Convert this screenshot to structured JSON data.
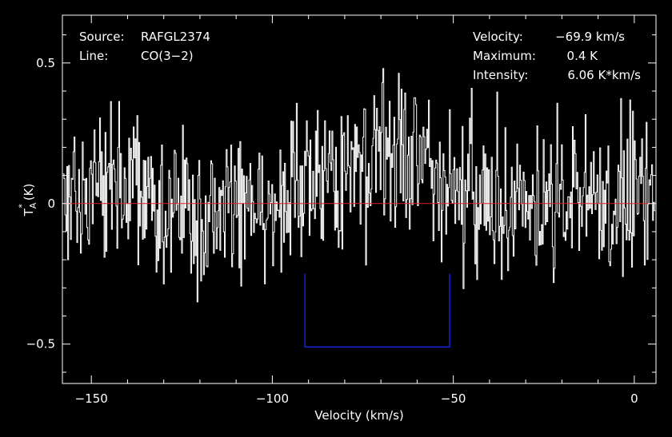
{
  "chart_data": {
    "type": "line",
    "xlabel": "Velocity (km/s)",
    "ylabel_main": "T",
    "ylabel_sub": "A",
    "ylabel_sup": "*",
    "ylabel_unit": "(K)",
    "xlim": [
      -158,
      6
    ],
    "ylim": [
      -0.64,
      0.67
    ],
    "xticks": [
      {
        "value": -150,
        "label": "−150"
      },
      {
        "value": -100,
        "label": "−100"
      },
      {
        "value": -50,
        "label": "−50"
      },
      {
        "value": 0,
        "label": "0"
      }
    ],
    "yticks": [
      {
        "value": 0.5,
        "label": "0.5"
      },
      {
        "value": 0,
        "label": "0"
      },
      {
        "value": -0.5,
        "label": "−0.5"
      }
    ],
    "info_left": [
      {
        "key": "Source:",
        "value": "RAFGL2374"
      },
      {
        "key": "Line:",
        "value": "CO(3−2)"
      }
    ],
    "info_right": [
      {
        "key": "Velocity:",
        "value": "−69.9 km/s"
      },
      {
        "key": "Maximum:",
        "value": "0.4 K"
      },
      {
        "key": "Intensity:",
        "value": "6.06 K*km/s"
      }
    ],
    "baseline": {
      "y": 0,
      "color": "#e02020"
    },
    "window": {
      "x_start": -91,
      "x_end": -51,
      "y_top": -0.25,
      "y_bottom": -0.51,
      "color": "#1a22d8"
    },
    "series": [
      {
        "color": "#ffffff",
        "profile": {
          "center": -68,
          "sigma": 14,
          "peak": 0.2
        },
        "noise_rms": 0.14,
        "x_start": -157.8,
        "x_end": 5.8,
        "channels": 650
      }
    ]
  },
  "colors": {
    "background": "#000000",
    "foreground": "#ffffff"
  }
}
